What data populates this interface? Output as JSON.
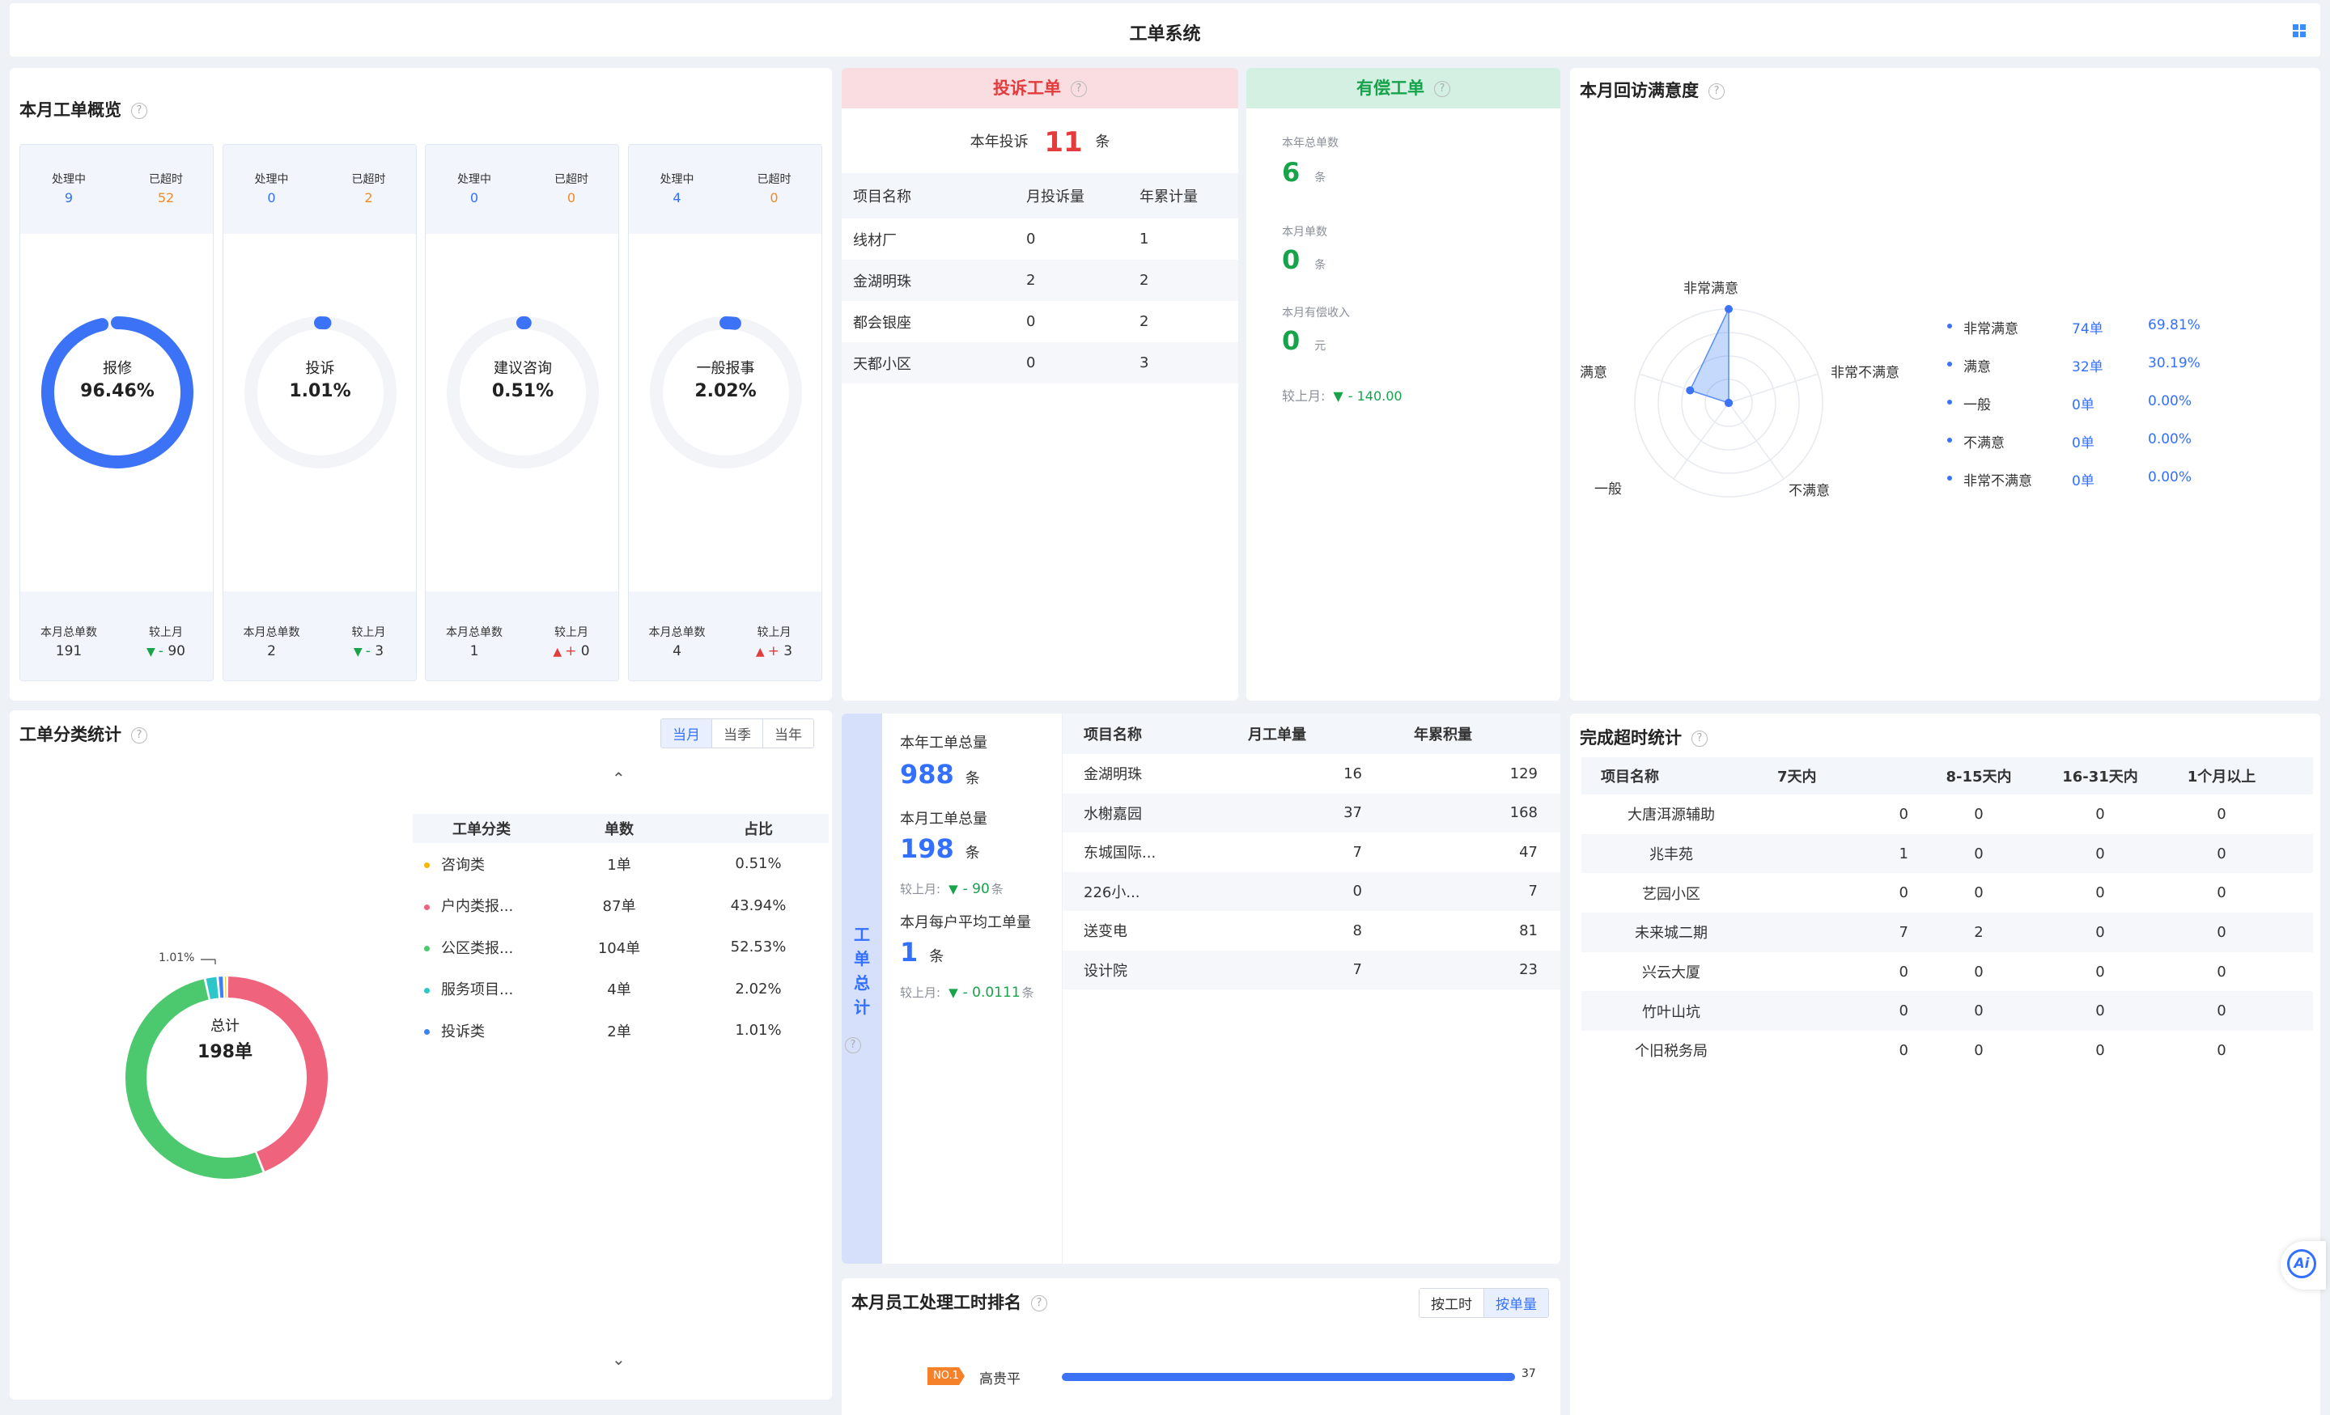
{
  "header": {
    "title": "工单系统"
  },
  "overview": {
    "title": "本月工单概览",
    "processing_label": "处理中",
    "overdue_label": "已超时",
    "total_label": "本月总单数",
    "compare_label": "较上月",
    "cards": [
      {
        "processing": "9",
        "overdue": "52",
        "name": "报修",
        "pct": "96.46%",
        "ratio": 0.9646,
        "total": "191",
        "trend": "▼",
        "trend_text": "- 90",
        "trend_color": "#16a34a"
      },
      {
        "processing": "0",
        "overdue": "2",
        "name": "投诉",
        "pct": "1.01%",
        "ratio": 0.0101,
        "total": "2",
        "trend": "▼",
        "trend_text": "- 3",
        "trend_color": "#16a34a"
      },
      {
        "processing": "0",
        "overdue": "0",
        "name": "建议咨询",
        "pct": "0.51%",
        "ratio": 0.0051,
        "total": "1",
        "trend": "▲",
        "trend_text": "+ 0",
        "trend_color": "#e23c3c"
      },
      {
        "processing": "4",
        "overdue": "0",
        "name": "一般报事",
        "pct": "2.02%",
        "ratio": 0.0202,
        "total": "4",
        "trend": "▲",
        "trend_text": "+ 3",
        "trend_color": "#e23c3c"
      }
    ]
  },
  "complaints": {
    "title": "投诉工单",
    "year_label": "本年投诉",
    "year_value": "11",
    "unit": "条",
    "columns": [
      "项目名称",
      "月投诉量",
      "年累计量"
    ],
    "rows": [
      [
        "线材厂",
        "0",
        "1"
      ],
      [
        "金湖明珠",
        "2",
        "2"
      ],
      [
        "都会银座",
        "0",
        "2"
      ],
      [
        "天都小区",
        "0",
        "3"
      ]
    ]
  },
  "paid": {
    "title": "有偿工单",
    "year_label": "本年总单数",
    "year_value": "6",
    "year_unit": "条",
    "month_label": "本月单数",
    "month_value": "0",
    "month_unit": "条",
    "income_label": "本月有偿收入",
    "income_value": "0",
    "income_unit": "元",
    "compare_label": "较上月:",
    "compare_arrow": "▼",
    "compare_value": "- 140.00"
  },
  "satisfaction": {
    "title": "本月回访满意度",
    "axes": [
      "非常满意",
      "非常不满意",
      "不满意",
      "一般",
      "满意"
    ],
    "legend": [
      {
        "name": "非常满意",
        "count": "74单",
        "pct": "69.81%"
      },
      {
        "name": "满意",
        "count": "32单",
        "pct": "30.19%"
      },
      {
        "name": "一般",
        "count": "0单",
        "pct": "0.00%"
      },
      {
        "name": "不满意",
        "count": "0单",
        "pct": "0.00%"
      },
      {
        "name": "非常不满意",
        "count": "0单",
        "pct": "0.00%"
      }
    ]
  },
  "category": {
    "title": "工单分类统计",
    "tabs": [
      "当月",
      "当季",
      "当年"
    ],
    "center_label": "总计",
    "center_value": "198单",
    "small_label": "1.01%",
    "columns": [
      "工单分类",
      "单数",
      "占比"
    ],
    "rows": [
      {
        "name": "咨询类",
        "count": "1单",
        "pct": "0.51%",
        "color": "#f5b700"
      },
      {
        "name": "户内类报...",
        "count": "87单",
        "pct": "43.94%",
        "color": "#f0637c"
      },
      {
        "name": "公区类报...",
        "count": "104单",
        "pct": "52.53%",
        "color": "#4cc96f"
      },
      {
        "name": "服务项目...",
        "count": "4单",
        "pct": "2.02%",
        "color": "#2ec7c9"
      },
      {
        "name": "投诉类",
        "count": "2单",
        "pct": "1.01%",
        "color": "#3b82f6"
      }
    ]
  },
  "totals": {
    "side_label": "工单总计",
    "year_label": "本年工单总量",
    "year_value": "988",
    "month_label": "本月工单总量",
    "month_value": "198",
    "unit": "条",
    "compare_label": "较上月:",
    "compare_arrow": "▼",
    "compare_value": "- 90",
    "compare_unit": "条",
    "avg_label": "本月每户平均工单量",
    "avg_value": "1",
    "avg_compare_value": "- 0.0111",
    "columns": [
      "项目名称",
      "月工单量",
      "年累积量"
    ],
    "rows": [
      [
        "金湖明珠",
        "16",
        "129"
      ],
      [
        "水榭嘉园",
        "37",
        "168"
      ],
      [
        "东城国际...",
        "7",
        "47"
      ],
      [
        "226小...",
        "0",
        "7"
      ],
      [
        "送变电",
        "8",
        "81"
      ],
      [
        "设计院",
        "7",
        "23"
      ]
    ]
  },
  "ranking": {
    "title": "本月员工处理工时排名",
    "tabs": [
      "按工时",
      "按单量"
    ],
    "rows": [
      {
        "badge": "NO.1",
        "name": "高贵平",
        "value": "37",
        "ratio": 1.0
      }
    ]
  },
  "overtime": {
    "title": "完成超时统计",
    "columns": [
      "项目名称",
      "7天内",
      "8-15天内",
      "16-31天内",
      "1个月以上"
    ],
    "rows": [
      [
        "大唐洱源辅助",
        "0",
        "0",
        "0",
        "0"
      ],
      [
        "兆丰苑",
        "1",
        "0",
        "0",
        "0"
      ],
      [
        "艺园小区",
        "0",
        "0",
        "0",
        "0"
      ],
      [
        "未来城二期",
        "7",
        "2",
        "0",
        "0"
      ],
      [
        "兴云大厦",
        "0",
        "0",
        "0",
        "0"
      ],
      [
        "竹叶山坑",
        "0",
        "0",
        "0",
        "0"
      ],
      [
        "个旧税务局",
        "0",
        "0",
        "0",
        "0"
      ]
    ]
  },
  "ai_button": "Ai"
}
